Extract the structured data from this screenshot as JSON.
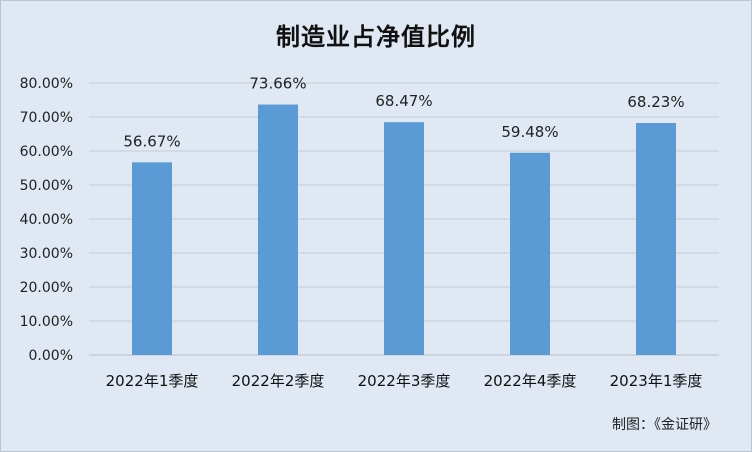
{
  "chart_data": {
    "type": "bar",
    "title": "制造业占净值比例",
    "categories": [
      "2022年1季度",
      "2022年2季度",
      "2022年3季度",
      "2022年4季度",
      "2023年1季度"
    ],
    "values": [
      56.67,
      73.66,
      68.47,
      59.48,
      68.23
    ],
    "data_labels": [
      "56.67%",
      "73.66%",
      "68.47%",
      "59.48%",
      "68.23%"
    ],
    "y_ticks": [
      "0.00%",
      "10.00%",
      "20.00%",
      "30.00%",
      "40.00%",
      "50.00%",
      "60.00%",
      "70.00%",
      "80.00%"
    ],
    "ylim": [
      0,
      80
    ],
    "grid": true,
    "legend": "none",
    "bar_color": "#5b9bd5",
    "background_color": "#dfe8f3"
  },
  "credit": "制图：《金证研》"
}
